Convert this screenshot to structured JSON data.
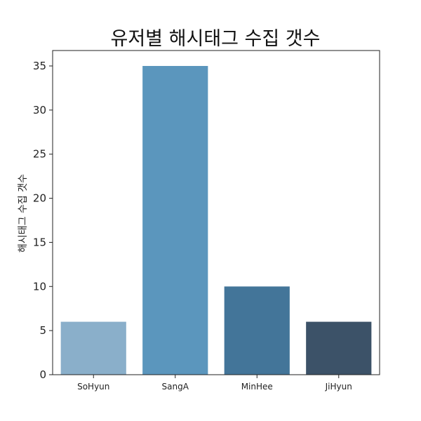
{
  "chart_data": {
    "type": "bar",
    "title": "유저별 해시태그 수집 갯수",
    "xlabel": "",
    "ylabel": "해시태그 수집 갯수",
    "categories": [
      "SoHyun",
      "SangA",
      "MinHee",
      "JiHyun"
    ],
    "values": [
      6,
      35,
      10,
      6
    ],
    "colors": [
      "#8aafca",
      "#5b96bd",
      "#437599",
      "#3c5268"
    ],
    "ylim": [
      0,
      36.75
    ],
    "yticks": [
      0,
      5,
      10,
      15,
      20,
      25,
      30,
      35
    ],
    "grid": false,
    "legend": "none"
  }
}
